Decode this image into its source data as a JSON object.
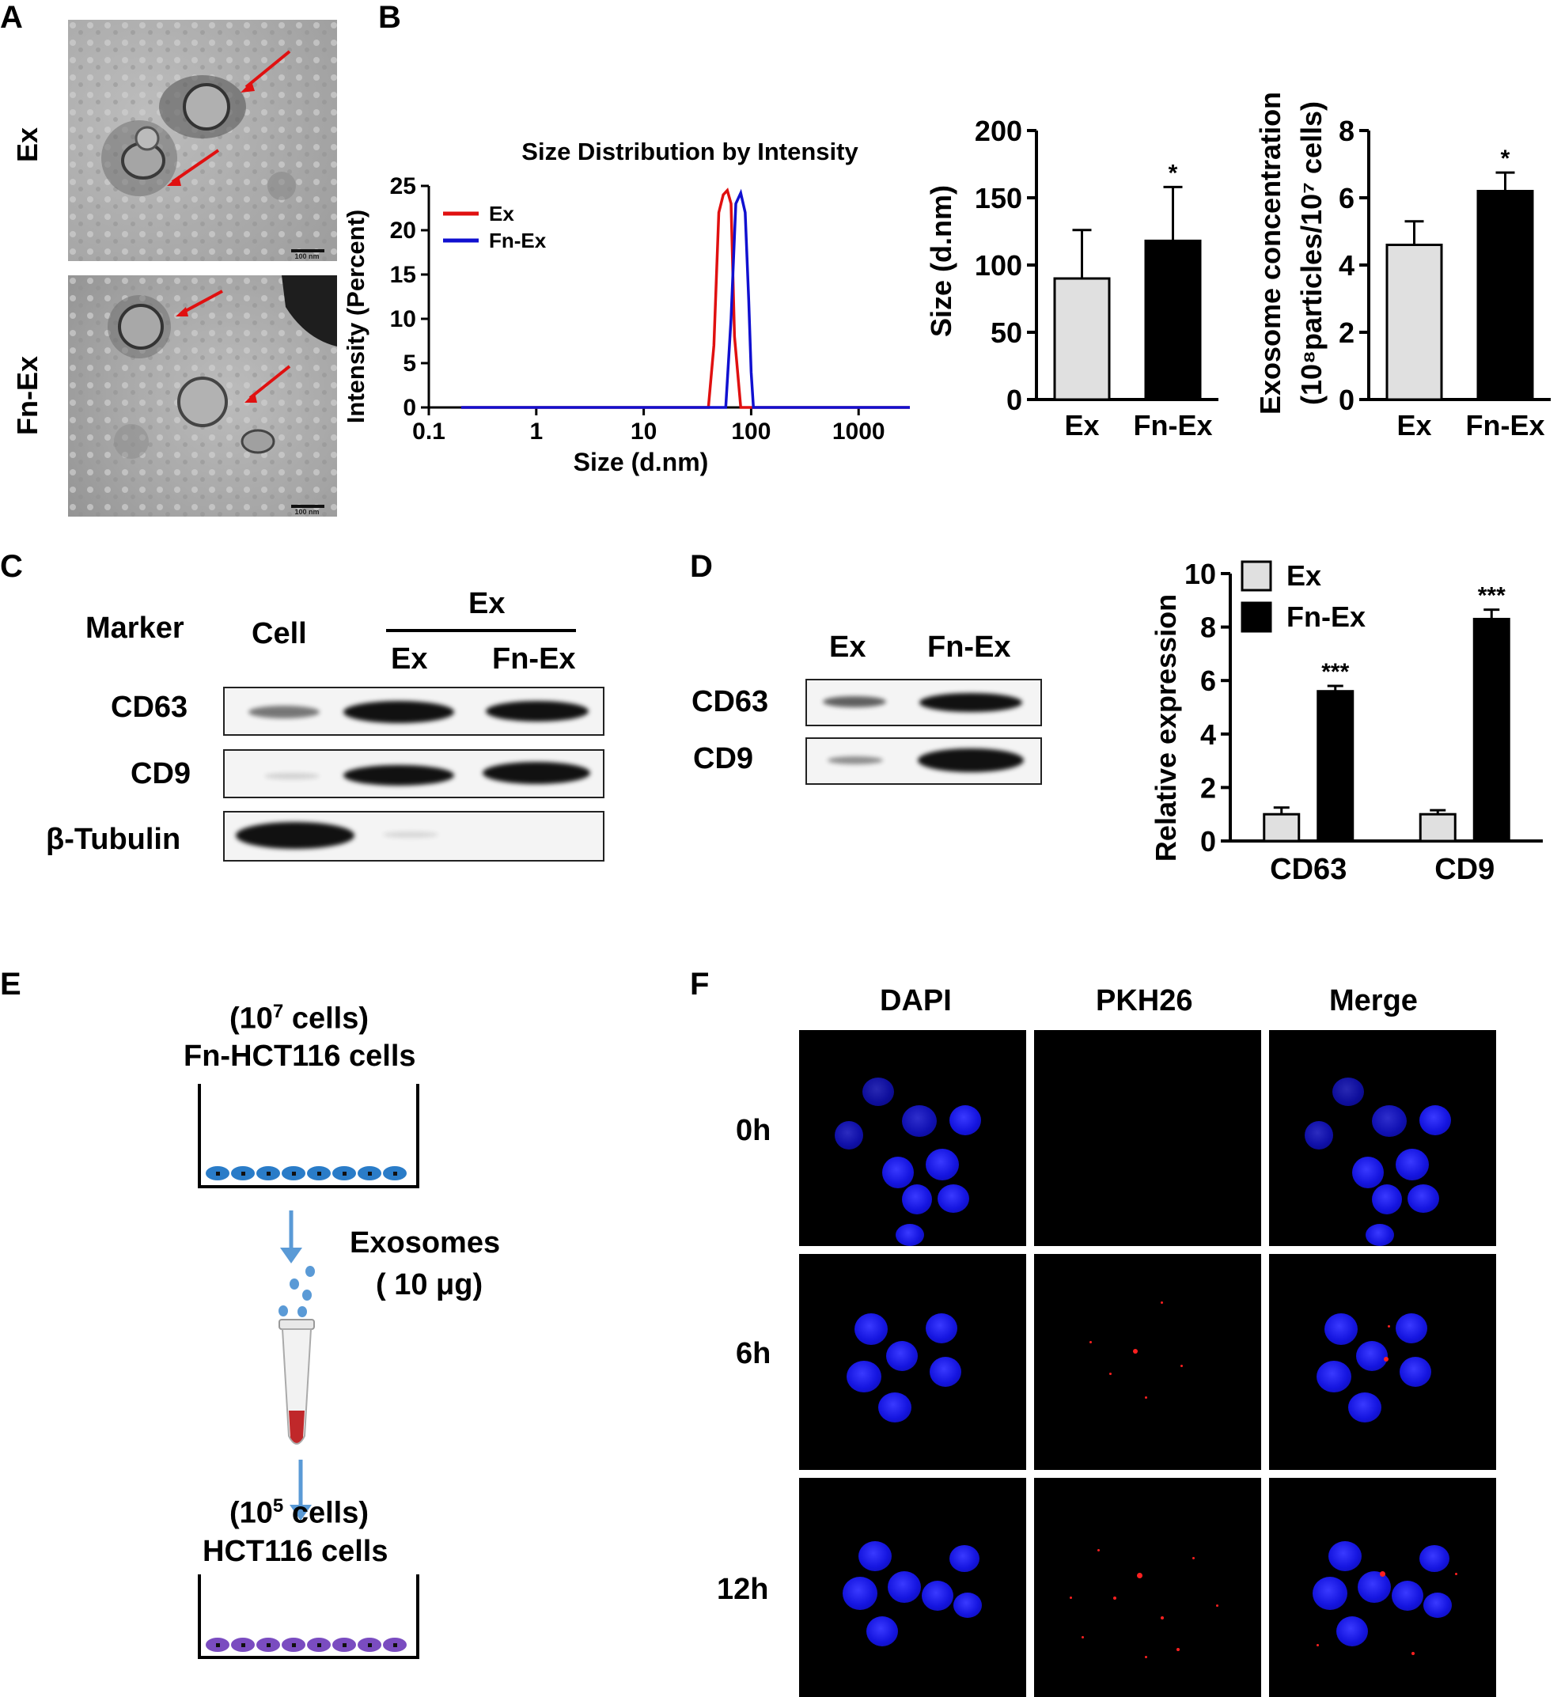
{
  "panels": {
    "A": "A",
    "B": "B",
    "C": "C",
    "D": "D",
    "E": "E",
    "F": "F"
  },
  "panel_a": {
    "row_labels": [
      "Ex",
      "Fn-Ex"
    ],
    "scale_text": "100 nm"
  },
  "chart_data": [
    {
      "type": "line",
      "title": "Size Distribution by Intensity",
      "xlabel": "Size (d.nm)",
      "ylabel": "Intensity (Percent)",
      "xscale": "log",
      "xlim": [
        0.1,
        3000
      ],
      "ylim": [
        0,
        25
      ],
      "x_ticks": [
        "0.1",
        "1",
        "10",
        "100",
        "1000"
      ],
      "y_ticks": [
        "0",
        "5",
        "10",
        "15",
        "20",
        "25"
      ],
      "legend_placement": "top-left",
      "series": [
        {
          "name": "Ex",
          "color": "#e01010",
          "x": [
            0.2,
            40,
            45,
            50,
            55,
            60,
            65,
            70,
            80,
            3000
          ],
          "y": [
            0,
            0,
            7,
            22,
            24,
            24.5,
            23,
            8,
            0,
            0
          ]
        },
        {
          "name": "Fn-Ex",
          "color": "#1010d0",
          "x": [
            0.2,
            58,
            65,
            72,
            80,
            88,
            95,
            100,
            105,
            3000
          ],
          "y": [
            0,
            0,
            10,
            23,
            24.2,
            22,
            12,
            4,
            0,
            0
          ]
        }
      ]
    },
    {
      "type": "bar",
      "categories": [
        "Ex",
        "Fn-Ex"
      ],
      "values": [
        90,
        118
      ],
      "errors": [
        36,
        40
      ],
      "ylabel": "Size (d.nm)",
      "ylim": [
        0,
        200
      ],
      "y_ticks": [
        "0",
        "50",
        "100",
        "150",
        "200"
      ],
      "annotations": [
        "",
        "*"
      ],
      "colors": [
        "#e0e0e0",
        "#000000"
      ]
    },
    {
      "type": "bar",
      "categories": [
        "Ex",
        "Fn-Ex"
      ],
      "values": [
        4.6,
        6.2
      ],
      "errors": [
        0.7,
        0.55
      ],
      "ylabel_line1": "Exosome concentration",
      "ylabel_line2": "(10⁸particles/10⁷ cells)",
      "ylim": [
        0,
        8
      ],
      "y_ticks": [
        "0",
        "2",
        "4",
        "6",
        "8"
      ],
      "annotations": [
        "",
        "*"
      ],
      "colors": [
        "#e0e0e0",
        "#000000"
      ]
    },
    {
      "type": "bar",
      "categories": [
        "CD63",
        "CD9"
      ],
      "series": [
        {
          "name": "Ex",
          "values": [
            1.0,
            1.0
          ],
          "errors": [
            0.25,
            0.15
          ],
          "color": "#e0e0e0"
        },
        {
          "name": "Fn-Ex",
          "values": [
            5.6,
            8.3
          ],
          "errors": [
            0.2,
            0.35
          ],
          "color": "#000000"
        }
      ],
      "ylabel": "Relative expression",
      "ylim": [
        0,
        10
      ],
      "y_ticks": [
        "0",
        "2",
        "4",
        "6",
        "8",
        "10"
      ],
      "annotations": [
        "***",
        "***"
      ],
      "legend_placement": "top-left"
    }
  ],
  "panel_c": {
    "marker_header": "Marker",
    "group_header": "Ex",
    "columns": [
      "Cell",
      "Ex",
      "Fn-Ex"
    ],
    "rows": [
      "CD63",
      "CD9",
      "β-Tubulin"
    ]
  },
  "panel_d": {
    "columns": [
      "Ex",
      "Fn-Ex"
    ],
    "rows": [
      "CD63",
      "CD9"
    ]
  },
  "panel_e": {
    "top_count_pre": "(10",
    "top_count_sup": "7",
    "top_count_post": " cells)",
    "top_cells": "Fn-HCT116 cells",
    "exosomes_label": "Exosomes",
    "exosomes_amount": "( 10 μg)",
    "bottom_count_pre": "(10",
    "bottom_count_sup": "5",
    "bottom_count_post": " cells)",
    "bottom_cells": "HCT116 cells"
  },
  "panel_f": {
    "columns": [
      "DAPI",
      "PKH26",
      "Merge"
    ],
    "rows": [
      "0h",
      "6h",
      "12h"
    ]
  }
}
